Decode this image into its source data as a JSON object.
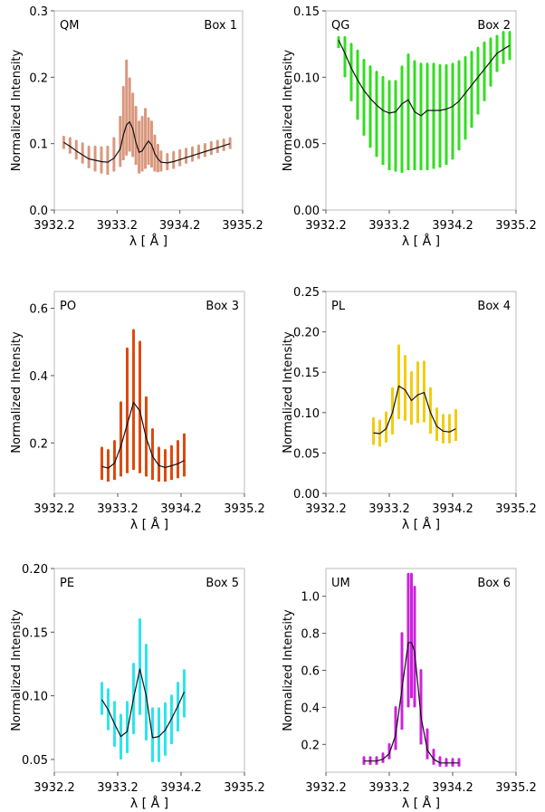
{
  "chart_data": [
    {
      "type": "line",
      "label_left": "QM",
      "label_right": "Box 1",
      "xlabel": "λ [ Å ]",
      "ylabel": "Normalized Intensity",
      "xlim": [
        3932.2,
        3935.2
      ],
      "ylim": [
        0.0,
        0.3
      ],
      "xticks": [
        3932.2,
        3933.2,
        3934.2,
        3935.2
      ],
      "yticks": [
        "0.0",
        "0.1",
        "0.2",
        "0.3"
      ],
      "color": "#d9987e",
      "series": [
        {
          "x": [
            3932.35,
            3932.45,
            3932.55,
            3932.65,
            3932.75,
            3932.85,
            3932.95,
            3933.05,
            3933.15,
            3933.25,
            3933.3,
            3933.35,
            3933.4,
            3933.45,
            3933.5,
            3933.55,
            3933.6,
            3933.65,
            3933.7,
            3933.75,
            3933.8,
            3933.85,
            3933.9,
            3934.0,
            3934.1,
            3934.2,
            3934.3,
            3934.4,
            3934.5,
            3934.6,
            3934.7,
            3934.8,
            3934.9,
            3935.0
          ],
          "y": [
            0.102,
            0.096,
            0.089,
            0.083,
            0.077,
            0.075,
            0.073,
            0.072,
            0.078,
            0.092,
            0.113,
            0.128,
            0.133,
            0.122,
            0.102,
            0.087,
            0.089,
            0.097,
            0.104,
            0.098,
            0.085,
            0.077,
            0.072,
            0.071,
            0.073,
            0.076,
            0.079,
            0.082,
            0.085,
            0.088,
            0.091,
            0.094,
            0.097,
            0.1
          ],
          "low": [
            0.092,
            0.085,
            0.076,
            0.07,
            0.063,
            0.058,
            0.055,
            0.053,
            0.058,
            0.065,
            0.075,
            0.082,
            0.088,
            0.08,
            0.068,
            0.055,
            0.058,
            0.062,
            0.068,
            0.064,
            0.058,
            0.057,
            0.058,
            0.06,
            0.062,
            0.066,
            0.07,
            0.073,
            0.077,
            0.08,
            0.083,
            0.086,
            0.089,
            0.092
          ],
          "high": [
            0.11,
            0.108,
            0.104,
            0.1,
            0.095,
            0.095,
            0.094,
            0.095,
            0.108,
            0.14,
            0.185,
            0.225,
            0.198,
            0.175,
            0.155,
            0.133,
            0.14,
            0.152,
            0.138,
            0.133,
            0.112,
            0.098,
            0.088,
            0.084,
            0.087,
            0.09,
            0.092,
            0.094,
            0.097,
            0.099,
            0.102,
            0.104,
            0.106,
            0.108
          ]
        }
      ]
    },
    {
      "type": "line",
      "label_left": "QG",
      "label_right": "Box 2",
      "xlabel": "λ [ Å ]",
      "ylabel": "Normalized Intensity",
      "xlim": [
        3932.2,
        3935.2
      ],
      "ylim": [
        0.0,
        0.15
      ],
      "xticks": [
        3932.2,
        3933.2,
        3934.2,
        3935.2
      ],
      "yticks": [
        "0.00",
        "0.05",
        "0.10",
        "0.15"
      ],
      "color": "#33dd22",
      "series": [
        {
          "x": [
            3932.4,
            3932.5,
            3932.6,
            3932.7,
            3932.8,
            3932.9,
            3933.0,
            3933.1,
            3933.2,
            3933.3,
            3933.4,
            3933.5,
            3933.6,
            3933.7,
            3933.8,
            3933.9,
            3934.0,
            3934.1,
            3934.2,
            3934.3,
            3934.4,
            3934.5,
            3934.6,
            3934.7,
            3934.8,
            3934.9,
            3935.0,
            3935.1
          ],
          "y": [
            0.128,
            0.118,
            0.107,
            0.098,
            0.09,
            0.084,
            0.079,
            0.075,
            0.073,
            0.074,
            0.08,
            0.083,
            0.074,
            0.071,
            0.075,
            0.075,
            0.075,
            0.076,
            0.078,
            0.082,
            0.088,
            0.094,
            0.1,
            0.106,
            0.112,
            0.118,
            0.121,
            0.124
          ],
          "low": [
            0.122,
            0.1,
            0.082,
            0.068,
            0.056,
            0.047,
            0.04,
            0.034,
            0.03,
            0.029,
            0.028,
            0.03,
            0.03,
            0.03,
            0.03,
            0.031,
            0.032,
            0.034,
            0.038,
            0.045,
            0.053,
            0.062,
            0.072,
            0.082,
            0.093,
            0.104,
            0.11,
            0.113
          ],
          "high": [
            0.13,
            0.13,
            0.125,
            0.12,
            0.113,
            0.108,
            0.104,
            0.1,
            0.097,
            0.097,
            0.108,
            0.117,
            0.112,
            0.11,
            0.11,
            0.11,
            0.109,
            0.109,
            0.11,
            0.112,
            0.115,
            0.119,
            0.122,
            0.126,
            0.129,
            0.131,
            0.134,
            0.134
          ]
        }
      ]
    },
    {
      "type": "line",
      "label_left": "PO",
      "label_right": "Box 3",
      "xlabel": "λ [ Å ]",
      "ylabel": "Normalized Intensity",
      "xlim": [
        3932.2,
        3935.2
      ],
      "ylim": [
        0.05,
        0.65
      ],
      "xticks": [
        3932.2,
        3933.2,
        3934.2,
        3935.2
      ],
      "yticks": [
        "0.2",
        "0.4",
        "0.6"
      ],
      "color": "#dd4a10",
      "series": [
        {
          "x": [
            3932.95,
            3933.05,
            3933.15,
            3933.25,
            3933.35,
            3933.45,
            3933.55,
            3933.65,
            3933.75,
            3933.85,
            3933.95,
            3934.05,
            3934.15,
            3934.25
          ],
          "y": [
            0.13,
            0.125,
            0.14,
            0.19,
            0.255,
            0.32,
            0.295,
            0.215,
            0.16,
            0.133,
            0.127,
            0.132,
            0.138,
            0.148
          ],
          "low": [
            0.09,
            0.085,
            0.09,
            0.1,
            0.11,
            0.12,
            0.11,
            0.1,
            0.09,
            0.085,
            0.085,
            0.09,
            0.095,
            0.1
          ],
          "high": [
            0.185,
            0.178,
            0.205,
            0.32,
            0.48,
            0.535,
            0.5,
            0.335,
            0.24,
            0.185,
            0.178,
            0.19,
            0.205,
            0.225
          ]
        }
      ]
    },
    {
      "type": "line",
      "label_left": "PL",
      "label_right": "Box 4",
      "xlabel": "λ [ Å ]",
      "ylabel": "Normalized Intensity",
      "xlim": [
        3932.2,
        3935.2
      ],
      "ylim": [
        0.0,
        0.25
      ],
      "xticks": [
        3932.2,
        3933.2,
        3934.2,
        3935.2
      ],
      "yticks": [
        "0.00",
        "0.05",
        "0.10",
        "0.15",
        "0.20",
        "0.25"
      ],
      "color": "#f2cc11",
      "series": [
        {
          "x": [
            3932.95,
            3933.05,
            3933.15,
            3933.25,
            3933.35,
            3933.45,
            3933.55,
            3933.65,
            3933.75,
            3933.85,
            3933.95,
            3934.05,
            3934.15,
            3934.25
          ],
          "y": [
            0.075,
            0.074,
            0.08,
            0.1,
            0.133,
            0.128,
            0.115,
            0.122,
            0.125,
            0.1,
            0.083,
            0.077,
            0.076,
            0.08
          ],
          "low": [
            0.06,
            0.058,
            0.063,
            0.073,
            0.092,
            0.09,
            0.085,
            0.087,
            0.088,
            0.074,
            0.065,
            0.062,
            0.062,
            0.065
          ],
          "high": [
            0.093,
            0.09,
            0.1,
            0.13,
            0.183,
            0.17,
            0.15,
            0.162,
            0.163,
            0.13,
            0.105,
            0.097,
            0.097,
            0.103
          ]
        }
      ]
    },
    {
      "type": "line",
      "label_left": "PE",
      "label_right": "Box 5",
      "xlabel": "λ [ Å ]",
      "ylabel": "Normalized Intensity",
      "xlim": [
        3932.2,
        3935.2
      ],
      "ylim": [
        0.04,
        0.2
      ],
      "xticks": [
        3932.2,
        3933.2,
        3934.2,
        3935.2
      ],
      "yticks": [
        "0.05",
        "0.10",
        "0.15",
        "0.20"
      ],
      "color": "#2ce5ec",
      "series": [
        {
          "x": [
            3932.95,
            3933.05,
            3933.15,
            3933.25,
            3933.35,
            3933.45,
            3933.55,
            3933.65,
            3933.75,
            3933.85,
            3933.95,
            3934.05,
            3934.15,
            3934.25
          ],
          "y": [
            0.097,
            0.089,
            0.078,
            0.068,
            0.072,
            0.098,
            0.121,
            0.1,
            0.067,
            0.068,
            0.073,
            0.082,
            0.092,
            0.103
          ],
          "low": [
            0.085,
            0.073,
            0.06,
            0.05,
            0.055,
            0.07,
            0.085,
            0.065,
            0.048,
            0.048,
            0.053,
            0.062,
            0.072,
            0.083
          ],
          "high": [
            0.11,
            0.105,
            0.095,
            0.085,
            0.095,
            0.125,
            0.16,
            0.14,
            0.09,
            0.09,
            0.094,
            0.1,
            0.11,
            0.12
          ]
        }
      ]
    },
    {
      "type": "line",
      "label_left": "UM",
      "label_right": "Box 6",
      "xlabel": "λ [ Å ]",
      "ylabel": "Normalized Intensity",
      "xlim": [
        3932.2,
        3935.2
      ],
      "ylim": [
        0.05,
        1.15
      ],
      "xticks": [
        3932.2,
        3933.2,
        3934.2,
        3935.2
      ],
      "yticks": [
        "0.2",
        "0.4",
        "0.6",
        "0.8",
        "1.0"
      ],
      "color": "#cc22dd",
      "series": [
        {
          "x": [
            3932.8,
            3932.9,
            3933.0,
            3933.1,
            3933.2,
            3933.3,
            3933.4,
            3933.5,
            3933.55,
            3933.6,
            3933.7,
            3933.8,
            3933.9,
            3934.0,
            3934.1,
            3934.2,
            3934.3
          ],
          "y": [
            0.11,
            0.11,
            0.11,
            0.12,
            0.15,
            0.25,
            0.5,
            0.75,
            0.75,
            0.7,
            0.35,
            0.17,
            0.12,
            0.1,
            0.1,
            0.1,
            0.1
          ],
          "low": [
            0.09,
            0.09,
            0.09,
            0.1,
            0.12,
            0.17,
            0.28,
            0.4,
            0.45,
            0.4,
            0.2,
            0.12,
            0.09,
            0.08,
            0.08,
            0.08,
            0.08
          ],
          "high": [
            0.13,
            0.13,
            0.13,
            0.15,
            0.2,
            0.4,
            0.8,
            1.12,
            1.12,
            1.05,
            0.6,
            0.28,
            0.17,
            0.13,
            0.12,
            0.12,
            0.12
          ]
        }
      ]
    }
  ]
}
